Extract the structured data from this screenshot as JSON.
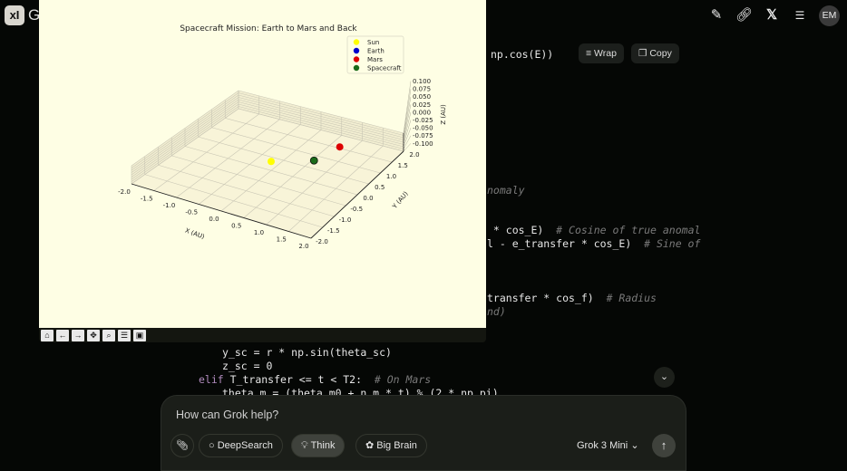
{
  "header": {
    "logo": "xI",
    "title_fragment": "G",
    "avatar": "EM",
    "icons": [
      "edit-icon",
      "link-icon",
      "x-logo-icon",
      "search-list-icon"
    ]
  },
  "code_toolbar": {
    "wrap_label": "Wrap",
    "copy_label": "Copy"
  },
  "code_lines": [
    {
      "code": "np.cos(E))",
      "comment": ""
    },
    {
      "code": "",
      "comment": "nomaly"
    },
    {
      "code": " * cos_E)  ",
      "comment": "# Cosine of true anomal"
    },
    {
      "code": "l - e_transfer * cos_E)  ",
      "comment": "# Sine of"
    },
    {
      "code": "transfer * cos_f)  ",
      "comment": "# Radius"
    },
    {
      "code": "",
      "comment": "nd)"
    },
    {
      "code": "y_sc = r * np.sin(theta_sc)",
      "comment": ""
    },
    {
      "code": "z_sc = 0",
      "comment": ""
    },
    {
      "keyword": "elif",
      "code": " T_transfer <= t < T2:  ",
      "comment": "# On Mars"
    },
    {
      "code": "theta_m = (theta_m0 + n_m * t) % (2 * np.pi)",
      "comment": ""
    }
  ],
  "figure_toolbar": [
    "home-icon",
    "back-icon",
    "forward-icon",
    "pan-icon",
    "zoom-icon",
    "configure-icon",
    "save-icon"
  ],
  "chart_data": {
    "type": "scatter3d",
    "title": "Spacecraft Mission: Earth to Mars and Back",
    "xlabel": "X (AU)",
    "ylabel": "Y (AU)",
    "zlabel": "Z (AU)",
    "xlim": [
      -2,
      2
    ],
    "ylim": [
      -2,
      2
    ],
    "zlim": [
      -0.1,
      0.1
    ],
    "xticks": [
      "-2.0",
      "-1.5",
      "-1.0",
      "-0.5",
      "0.0",
      "0.5",
      "1.0",
      "1.5",
      "2.0"
    ],
    "yticks": [
      "-2.0",
      "-1.5",
      "-1.0",
      "-0.5",
      "0.0",
      "0.5",
      "1.0",
      "1.5",
      "2.0"
    ],
    "zticks": [
      "0.100",
      "0.075",
      "0.050",
      "0.025",
      "0.000",
      "-0.025",
      "-0.050",
      "-0.075",
      "-0.100"
    ],
    "grid": true,
    "legend_position": "top-right",
    "series": [
      {
        "name": "Sun",
        "color": "#ffff00",
        "x": 0.0,
        "y": 0.0,
        "z": 0.0
      },
      {
        "name": "Earth",
        "color": "#0000cc",
        "x": 0.73,
        "y": 0.47,
        "z": 0.0
      },
      {
        "name": "Mars",
        "color": "#dd0000",
        "x": 0.91,
        "y": 1.22,
        "z": 0.0
      },
      {
        "name": "Spacecraft",
        "color": "#1a6b1a",
        "x": 0.73,
        "y": 0.47,
        "z": 0.0
      }
    ]
  },
  "composer": {
    "placeholder": "How can Grok help?",
    "deepsearch": "DeepSearch",
    "think": "Think",
    "big_brain": "Big Brain",
    "model": "Grok 3 Mini"
  }
}
